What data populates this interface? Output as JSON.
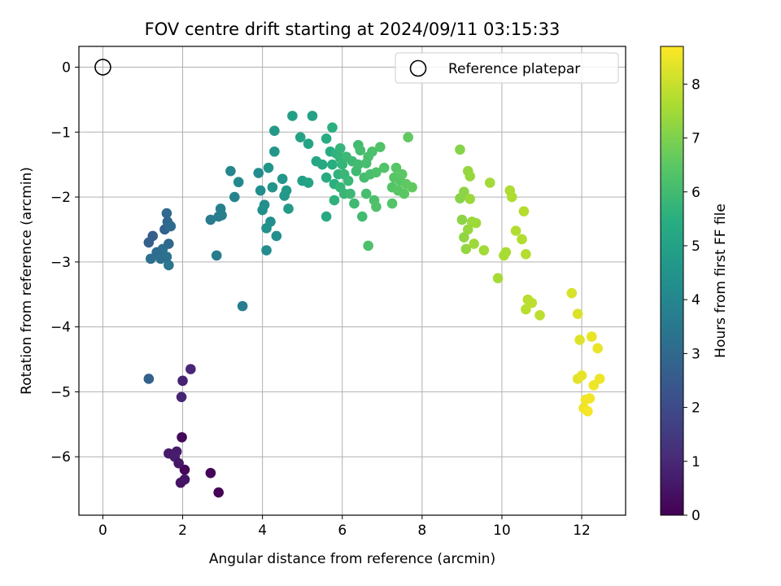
{
  "chart_data": {
    "type": "scatter",
    "title": "FOV centre drift starting at 2024/09/11 03:15:33",
    "xlabel": "Angular distance from reference (arcmin)",
    "ylabel": "Rotation from reference (arcmin)",
    "xlim": [
      -0.6,
      13.1
    ],
    "ylim": [
      -6.9,
      0.32
    ],
    "xticks": [
      0,
      2,
      4,
      6,
      8,
      10,
      12
    ],
    "yticks": [
      0,
      -1,
      -2,
      -3,
      -4,
      -5,
      -6
    ],
    "grid": true,
    "legend": {
      "label": "Reference platepar",
      "placement": "top-right"
    },
    "reference_point": {
      "x": 0,
      "y": 0
    },
    "colorbar": {
      "label": "Hours from first FF file",
      "min": 0,
      "max": 8.7,
      "ticks": [
        0,
        1,
        2,
        3,
        4,
        5,
        6,
        7,
        8
      ],
      "colormap": [
        "#440154",
        "#472c7a",
        "#3b518b",
        "#2c718e",
        "#21908d",
        "#27ad81",
        "#5cc863",
        "#aadc32",
        "#fde725"
      ]
    },
    "points": [
      {
        "x": 2.9,
        "y": -6.55,
        "h": 0.05
      },
      {
        "x": 2.05,
        "y": -6.2,
        "h": 0.15
      },
      {
        "x": 2.7,
        "y": -6.25,
        "h": 0.1
      },
      {
        "x": 1.95,
        "y": -6.4,
        "h": 0.45
      },
      {
        "x": 2.05,
        "y": -6.35,
        "h": 0.5
      },
      {
        "x": 1.98,
        "y": -5.7,
        "h": 0.2
      },
      {
        "x": 1.65,
        "y": -5.95,
        "h": 0.6
      },
      {
        "x": 1.85,
        "y": -5.92,
        "h": 0.65
      },
      {
        "x": 1.8,
        "y": -6.0,
        "h": 0.7
      },
      {
        "x": 1.9,
        "y": -6.1,
        "h": 0.55
      },
      {
        "x": 1.97,
        "y": -5.08,
        "h": 0.9
      },
      {
        "x": 2.0,
        "y": -4.83,
        "h": 0.85
      },
      {
        "x": 2.2,
        "y": -4.65,
        "h": 0.95
      },
      {
        "x": 1.15,
        "y": -4.8,
        "h": 2.7
      },
      {
        "x": 1.6,
        "y": -2.25,
        "h": 3.0
      },
      {
        "x": 1.62,
        "y": -2.38,
        "h": 2.9
      },
      {
        "x": 1.55,
        "y": -2.5,
        "h": 2.8
      },
      {
        "x": 1.7,
        "y": -2.45,
        "h": 3.1
      },
      {
        "x": 1.25,
        "y": -2.6,
        "h": 2.6
      },
      {
        "x": 1.15,
        "y": -2.7,
        "h": 2.7
      },
      {
        "x": 1.5,
        "y": -2.8,
        "h": 3.2
      },
      {
        "x": 1.65,
        "y": -2.72,
        "h": 3.0
      },
      {
        "x": 1.35,
        "y": -2.85,
        "h": 3.1
      },
      {
        "x": 1.2,
        "y": -2.95,
        "h": 3.15
      },
      {
        "x": 1.6,
        "y": -2.92,
        "h": 3.3
      },
      {
        "x": 1.45,
        "y": -2.95,
        "h": 3.2
      },
      {
        "x": 1.65,
        "y": -3.05,
        "h": 3.4
      },
      {
        "x": 2.85,
        "y": -2.9,
        "h": 3.6
      },
      {
        "x": 3.5,
        "y": -3.68,
        "h": 3.7
      },
      {
        "x": 2.7,
        "y": -2.35,
        "h": 3.6
      },
      {
        "x": 2.9,
        "y": -2.3,
        "h": 3.7
      },
      {
        "x": 2.95,
        "y": -2.18,
        "h": 3.8
      },
      {
        "x": 2.98,
        "y": -2.28,
        "h": 3.75
      },
      {
        "x": 3.3,
        "y": -2.0,
        "h": 3.9
      },
      {
        "x": 3.2,
        "y": -1.6,
        "h": 4.0
      },
      {
        "x": 3.4,
        "y": -1.77,
        "h": 4.1
      },
      {
        "x": 3.9,
        "y": -1.63,
        "h": 4.2
      },
      {
        "x": 3.95,
        "y": -1.9,
        "h": 4.25
      },
      {
        "x": 4.05,
        "y": -2.12,
        "h": 4.3
      },
      {
        "x": 4.0,
        "y": -2.2,
        "h": 4.35
      },
      {
        "x": 4.1,
        "y": -2.48,
        "h": 4.4
      },
      {
        "x": 4.2,
        "y": -2.38,
        "h": 4.3
      },
      {
        "x": 4.1,
        "y": -2.82,
        "h": 4.2
      },
      {
        "x": 4.35,
        "y": -2.6,
        "h": 4.3
      },
      {
        "x": 4.25,
        "y": -1.85,
        "h": 4.5
      },
      {
        "x": 4.15,
        "y": -1.55,
        "h": 4.55
      },
      {
        "x": 4.3,
        "y": -1.3,
        "h": 4.6
      },
      {
        "x": 4.3,
        "y": -0.98,
        "h": 4.7
      },
      {
        "x": 4.5,
        "y": -1.72,
        "h": 4.6
      },
      {
        "x": 4.55,
        "y": -1.98,
        "h": 4.65
      },
      {
        "x": 4.6,
        "y": -1.9,
        "h": 4.7
      },
      {
        "x": 4.65,
        "y": -2.18,
        "h": 4.75
      },
      {
        "x": 4.75,
        "y": -0.75,
        "h": 4.9
      },
      {
        "x": 4.95,
        "y": -1.08,
        "h": 5.0
      },
      {
        "x": 5.0,
        "y": -1.75,
        "h": 4.9
      },
      {
        "x": 5.15,
        "y": -1.78,
        "h": 5.0
      },
      {
        "x": 5.15,
        "y": -1.18,
        "h": 5.1
      },
      {
        "x": 5.25,
        "y": -0.75,
        "h": 5.0
      },
      {
        "x": 5.35,
        "y": -1.45,
        "h": 5.2
      },
      {
        "x": 5.5,
        "y": -1.5,
        "h": 5.3
      },
      {
        "x": 5.6,
        "y": -1.1,
        "h": 5.35
      },
      {
        "x": 5.6,
        "y": -1.7,
        "h": 5.4
      },
      {
        "x": 5.6,
        "y": -2.3,
        "h": 5.3
      },
      {
        "x": 5.7,
        "y": -1.3,
        "h": 5.4
      },
      {
        "x": 5.75,
        "y": -0.93,
        "h": 5.5
      },
      {
        "x": 5.75,
        "y": -1.5,
        "h": 5.45
      },
      {
        "x": 5.8,
        "y": -1.8,
        "h": 5.5
      },
      {
        "x": 5.8,
        "y": -2.05,
        "h": 5.6
      },
      {
        "x": 5.85,
        "y": -1.33,
        "h": 5.6
      },
      {
        "x": 5.9,
        "y": -1.65,
        "h": 5.65
      },
      {
        "x": 5.95,
        "y": -1.25,
        "h": 5.7
      },
      {
        "x": 5.95,
        "y": -1.4,
        "h": 5.7
      },
      {
        "x": 5.95,
        "y": -1.85,
        "h": 5.75
      },
      {
        "x": 6.0,
        "y": -1.5,
        "h": 5.75
      },
      {
        "x": 6.05,
        "y": -1.65,
        "h": 5.8
      },
      {
        "x": 6.05,
        "y": -1.95,
        "h": 5.8
      },
      {
        "x": 6.1,
        "y": -1.38,
        "h": 5.85
      },
      {
        "x": 6.15,
        "y": -1.75,
        "h": 5.85
      },
      {
        "x": 6.2,
        "y": -1.95,
        "h": 5.9
      },
      {
        "x": 6.25,
        "y": -1.45,
        "h": 5.9
      },
      {
        "x": 6.3,
        "y": -2.1,
        "h": 5.95
      },
      {
        "x": 6.35,
        "y": -1.6,
        "h": 5.95
      },
      {
        "x": 6.4,
        "y": -1.2,
        "h": 6.0
      },
      {
        "x": 6.4,
        "y": -1.5,
        "h": 6.0
      },
      {
        "x": 6.45,
        "y": -1.28,
        "h": 6.05
      },
      {
        "x": 6.5,
        "y": -2.3,
        "h": 6.0
      },
      {
        "x": 6.55,
        "y": -1.7,
        "h": 6.05
      },
      {
        "x": 6.6,
        "y": -1.48,
        "h": 6.1
      },
      {
        "x": 6.6,
        "y": -1.95,
        "h": 6.1
      },
      {
        "x": 6.65,
        "y": -1.38,
        "h": 6.15
      },
      {
        "x": 6.65,
        "y": -2.75,
        "h": 6.2
      },
      {
        "x": 6.7,
        "y": -1.65,
        "h": 6.15
      },
      {
        "x": 6.75,
        "y": -1.3,
        "h": 6.2
      },
      {
        "x": 6.8,
        "y": -2.05,
        "h": 6.2
      },
      {
        "x": 6.85,
        "y": -1.62,
        "h": 6.25
      },
      {
        "x": 6.85,
        "y": -2.15,
        "h": 6.25
      },
      {
        "x": 6.95,
        "y": -1.23,
        "h": 6.3
      },
      {
        "x": 7.05,
        "y": -1.55,
        "h": 6.3
      },
      {
        "x": 7.25,
        "y": -1.85,
        "h": 6.35
      },
      {
        "x": 7.25,
        "y": -2.1,
        "h": 6.35
      },
      {
        "x": 7.3,
        "y": -1.7,
        "h": 6.4
      },
      {
        "x": 7.35,
        "y": -1.55,
        "h": 6.4
      },
      {
        "x": 7.4,
        "y": -1.9,
        "h": 6.45
      },
      {
        "x": 7.45,
        "y": -1.75,
        "h": 6.45
      },
      {
        "x": 7.5,
        "y": -1.65,
        "h": 6.5
      },
      {
        "x": 7.55,
        "y": -1.95,
        "h": 6.5
      },
      {
        "x": 7.6,
        "y": -1.8,
        "h": 6.55
      },
      {
        "x": 7.65,
        "y": -1.08,
        "h": 6.6
      },
      {
        "x": 7.75,
        "y": -1.85,
        "h": 6.6
      },
      {
        "x": 8.95,
        "y": -1.27,
        "h": 7.1
      },
      {
        "x": 8.95,
        "y": -2.02,
        "h": 7.15
      },
      {
        "x": 9.0,
        "y": -2.35,
        "h": 7.2
      },
      {
        "x": 9.05,
        "y": -1.92,
        "h": 7.2
      },
      {
        "x": 9.05,
        "y": -2.62,
        "h": 7.25
      },
      {
        "x": 9.1,
        "y": -2.8,
        "h": 7.3
      },
      {
        "x": 9.15,
        "y": -1.6,
        "h": 7.3
      },
      {
        "x": 9.15,
        "y": -2.5,
        "h": 7.35
      },
      {
        "x": 9.2,
        "y": -1.68,
        "h": 7.35
      },
      {
        "x": 9.2,
        "y": -2.03,
        "h": 7.4
      },
      {
        "x": 9.25,
        "y": -2.38,
        "h": 7.4
      },
      {
        "x": 9.3,
        "y": -2.72,
        "h": 7.45
      },
      {
        "x": 9.35,
        "y": -2.4,
        "h": 7.45
      },
      {
        "x": 9.55,
        "y": -2.82,
        "h": 7.5
      },
      {
        "x": 9.7,
        "y": -1.78,
        "h": 7.5
      },
      {
        "x": 9.9,
        "y": -3.25,
        "h": 7.55
      },
      {
        "x": 10.05,
        "y": -2.9,
        "h": 7.6
      },
      {
        "x": 10.1,
        "y": -2.85,
        "h": 7.6
      },
      {
        "x": 10.2,
        "y": -1.9,
        "h": 7.65
      },
      {
        "x": 10.25,
        "y": -2.0,
        "h": 7.65
      },
      {
        "x": 10.35,
        "y": -2.52,
        "h": 7.7
      },
      {
        "x": 10.5,
        "y": -2.65,
        "h": 7.7
      },
      {
        "x": 10.55,
        "y": -2.22,
        "h": 7.75
      },
      {
        "x": 10.6,
        "y": -2.88,
        "h": 7.75
      },
      {
        "x": 10.6,
        "y": -3.73,
        "h": 7.8
      },
      {
        "x": 10.65,
        "y": -3.58,
        "h": 7.8
      },
      {
        "x": 10.75,
        "y": -3.63,
        "h": 7.85
      },
      {
        "x": 10.95,
        "y": -3.82,
        "h": 7.85
      },
      {
        "x": 11.75,
        "y": -3.48,
        "h": 8.2
      },
      {
        "x": 11.9,
        "y": -3.8,
        "h": 8.25
      },
      {
        "x": 11.9,
        "y": -4.8,
        "h": 8.35
      },
      {
        "x": 11.95,
        "y": -4.2,
        "h": 8.3
      },
      {
        "x": 12.0,
        "y": -4.75,
        "h": 8.4
      },
      {
        "x": 12.05,
        "y": -5.25,
        "h": 8.5
      },
      {
        "x": 12.1,
        "y": -5.12,
        "h": 8.55
      },
      {
        "x": 12.15,
        "y": -5.3,
        "h": 8.6
      },
      {
        "x": 12.2,
        "y": -5.1,
        "h": 8.55
      },
      {
        "x": 12.25,
        "y": -4.15,
        "h": 8.45
      },
      {
        "x": 12.3,
        "y": -4.9,
        "h": 8.5
      },
      {
        "x": 12.4,
        "y": -4.33,
        "h": 8.45
      },
      {
        "x": 12.45,
        "y": -4.8,
        "h": 8.5
      }
    ]
  }
}
